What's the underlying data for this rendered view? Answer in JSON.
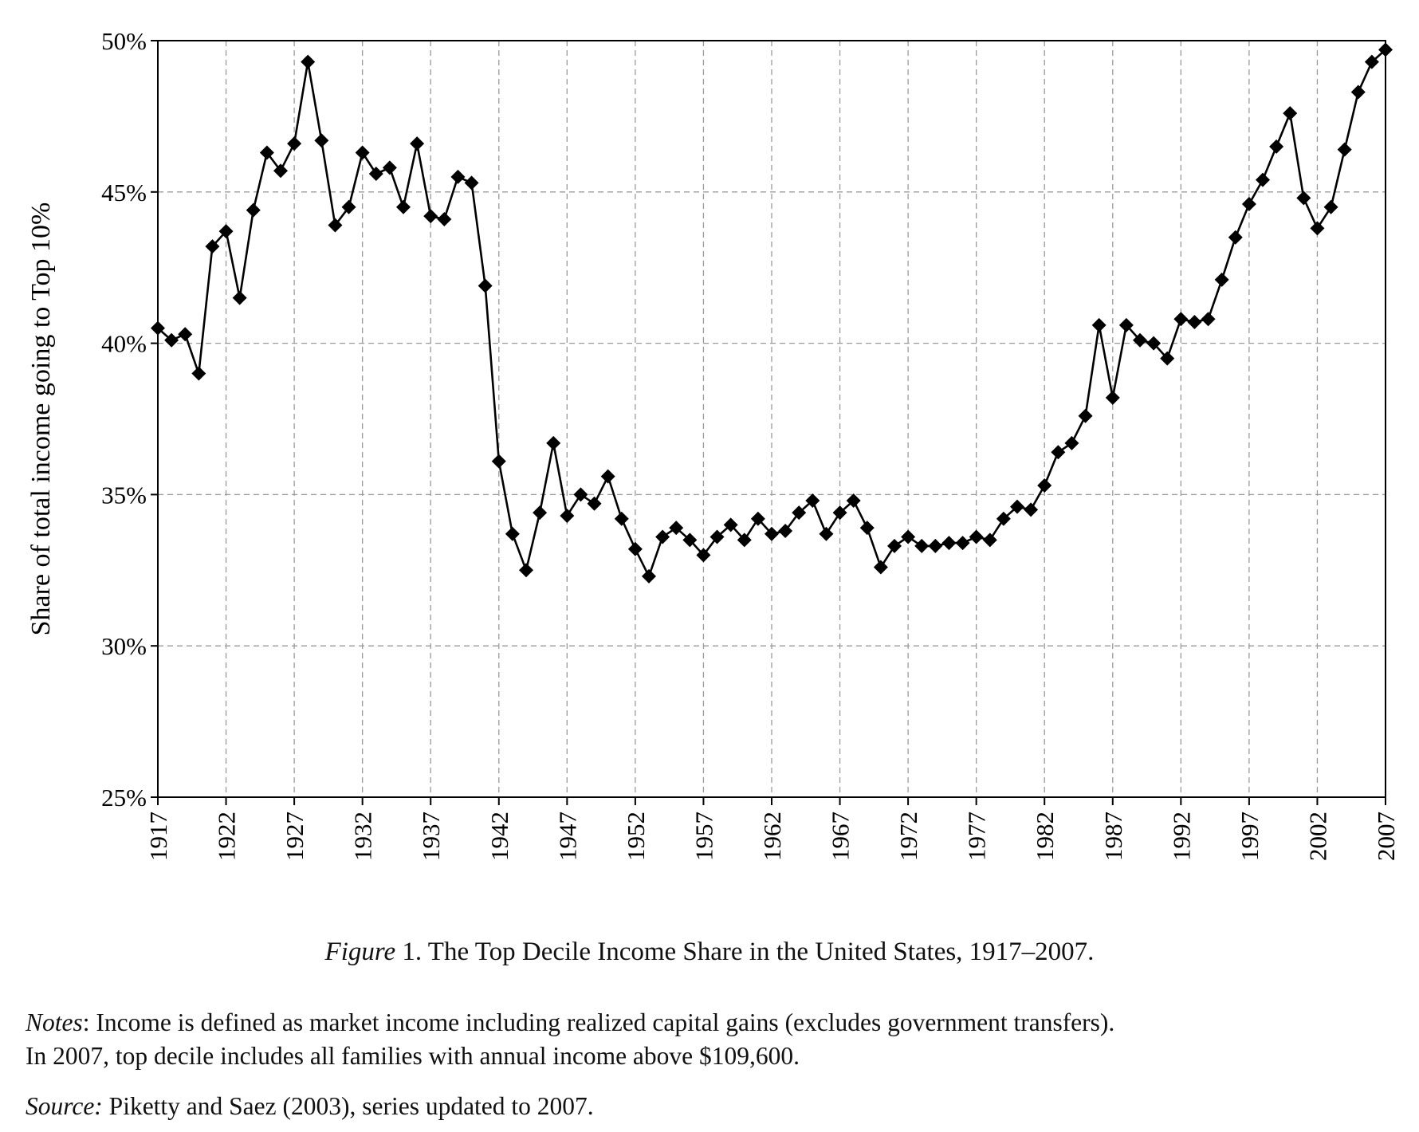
{
  "chart_data": {
    "type": "line",
    "ylabel": "Share of total income going to Top 10%",
    "ylim": [
      25,
      50
    ],
    "yticks": [
      "25%",
      "30%",
      "35%",
      "40%",
      "45%",
      "50%"
    ],
    "ytick_values": [
      25,
      30,
      35,
      40,
      45,
      50
    ],
    "xlim": [
      1917,
      2007
    ],
    "xticks": [
      "1917",
      "1922",
      "1927",
      "1932",
      "1937",
      "1942",
      "1947",
      "1952",
      "1957",
      "1962",
      "1967",
      "1972",
      "1977",
      "1982",
      "1987",
      "1992",
      "1997",
      "2002",
      "2007"
    ],
    "xtick_values": [
      1917,
      1922,
      1927,
      1932,
      1937,
      1942,
      1947,
      1952,
      1957,
      1962,
      1967,
      1972,
      1977,
      1982,
      1987,
      1992,
      1997,
      2002,
      2007
    ],
    "grid": true,
    "marker": "diamond",
    "series": [
      {
        "x": [
          1917,
          1918,
          1919,
          1920,
          1921,
          1922,
          1923,
          1924,
          1925,
          1926,
          1927,
          1928,
          1929,
          1930,
          1931,
          1932,
          1933,
          1934,
          1935,
          1936,
          1937,
          1938,
          1939,
          1940,
          1941,
          1942,
          1943,
          1944,
          1945,
          1946,
          1947,
          1948,
          1949,
          1950,
          1951,
          1952,
          1953,
          1954,
          1955,
          1956,
          1957,
          1958,
          1959,
          1960,
          1961,
          1962,
          1963,
          1964,
          1965,
          1966,
          1967,
          1968,
          1969,
          1970,
          1971,
          1972,
          1973,
          1974,
          1975,
          1976,
          1977,
          1978,
          1979,
          1980,
          1981,
          1982,
          1983,
          1984,
          1985,
          1986,
          1987,
          1988,
          1989,
          1990,
          1991,
          1992,
          1993,
          1994,
          1995,
          1996,
          1997,
          1998,
          1999,
          2000,
          2001,
          2002,
          2003,
          2004,
          2005,
          2006,
          2007
        ],
        "values": [
          40.5,
          40.1,
          40.3,
          39.0,
          43.2,
          43.7,
          41.5,
          44.4,
          46.3,
          45.7,
          46.6,
          49.3,
          46.7,
          43.9,
          44.5,
          46.3,
          45.6,
          45.8,
          44.5,
          46.6,
          44.2,
          44.1,
          45.5,
          45.3,
          41.9,
          36.1,
          33.7,
          32.5,
          34.4,
          36.7,
          34.3,
          35.0,
          34.7,
          35.6,
          34.2,
          33.2,
          32.3,
          33.6,
          33.9,
          33.5,
          33.0,
          33.6,
          34.0,
          33.5,
          34.2,
          33.7,
          33.8,
          34.4,
          34.8,
          33.7,
          34.4,
          34.8,
          33.9,
          32.6,
          33.3,
          33.6,
          33.3,
          33.3,
          33.4,
          33.4,
          33.6,
          33.5,
          34.2,
          34.6,
          34.5,
          35.3,
          36.4,
          36.7,
          37.6,
          40.6,
          38.2,
          40.6,
          40.1,
          40.0,
          39.5,
          40.8,
          40.7,
          40.8,
          42.1,
          43.5,
          44.6,
          45.4,
          46.5,
          47.6,
          44.8,
          43.8,
          44.5,
          46.4,
          48.3,
          49.3,
          49.7
        ]
      }
    ]
  },
  "caption": {
    "figure_label": "Figure",
    "text": " 1. The Top Decile Income Share in the United States, 1917–2007."
  },
  "notes": {
    "label": "Notes",
    "line1": ": Income is defined as market income including realized capital gains (excludes government transfers).",
    "line2": "In 2007, top decile includes all families with annual income above $109,600."
  },
  "source": {
    "label": "Source:",
    "text": " Piketty and Saez (2003), series updated to 2007."
  }
}
